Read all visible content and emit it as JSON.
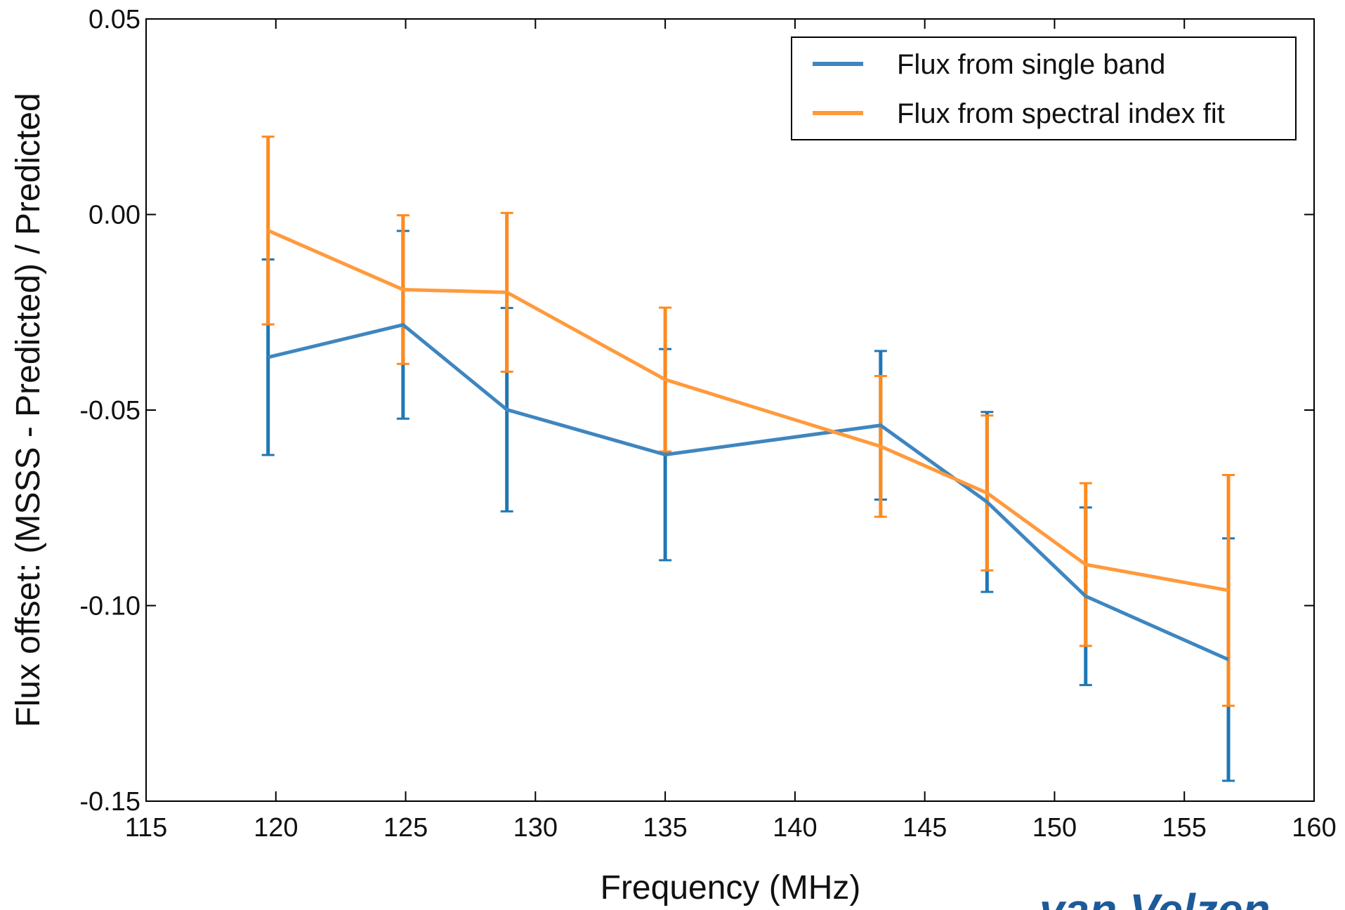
{
  "chart_data": {
    "type": "line",
    "x_label": "Frequency (MHz)",
    "y_label": "Flux offset: (MSSS - Predicted) / Predicted",
    "annotation": "van Velzen",
    "x": [
      119.7,
      124.9,
      128.9,
      135.0,
      143.3,
      147.4,
      151.2,
      156.7
    ],
    "series": [
      {
        "name": "Flux from single band",
        "color": "#3f86c0",
        "error_color": "#1f77b4",
        "values": [
          -0.0365,
          -0.0282,
          -0.0499,
          -0.0614,
          -0.0539,
          -0.0735,
          -0.0976,
          -0.1138
        ],
        "errors": [
          0.025,
          0.024,
          0.026,
          0.027,
          0.019,
          0.023,
          0.0227,
          0.031
        ]
      },
      {
        "name": "Flux from spectral index fit",
        "color": "#ff9a3c",
        "error_color": "#ff8a1e",
        "values": [
          -0.0041,
          -0.0192,
          -0.0199,
          -0.0422,
          -0.0593,
          -0.0712,
          -0.0895,
          -0.0961
        ],
        "errors": [
          0.024,
          0.019,
          0.0203,
          0.0184,
          0.018,
          0.0198,
          0.0208,
          0.0295
        ]
      }
    ],
    "xlim": [
      115,
      160
    ],
    "xticks": [
      115,
      120,
      125,
      130,
      135,
      140,
      145,
      150,
      155,
      160
    ],
    "ylim": [
      -0.15,
      0.05
    ],
    "yticks": [
      -0.15,
      {
        "value": -0.1,
        "label": "-0.10"
      },
      -0.05,
      {
        "value": 0,
        "label": "0.00"
      },
      0.05
    ],
    "legend": "upper right",
    "grid": false
  }
}
